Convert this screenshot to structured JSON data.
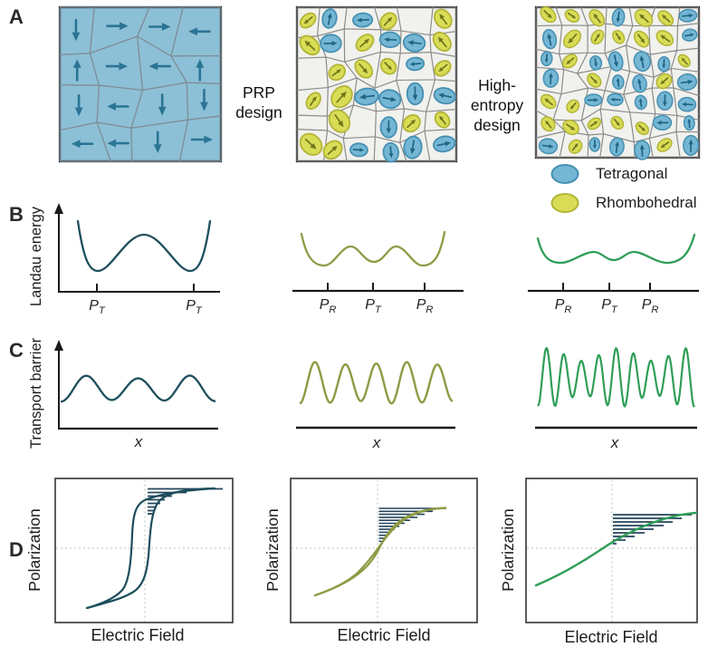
{
  "figure": {
    "panel_a": {
      "label": "A",
      "captions": {
        "prp": "PRP\ndesign",
        "high_entropy": "High-\nentropy\ndesign"
      },
      "legend": [
        {
          "label": "Tetragonal"
        },
        {
          "label": "Rhombohedral"
        }
      ]
    },
    "panel_b": {
      "label": "B",
      "ylabel": "Landau energy",
      "plots": [
        {
          "ticks": [
            {
              "base": "P",
              "sub": "T"
            },
            {
              "base": "P",
              "sub": "T"
            }
          ]
        },
        {
          "ticks": [
            {
              "base": "P",
              "sub": "R"
            },
            {
              "base": "P",
              "sub": "T"
            },
            {
              "base": "P",
              "sub": "R"
            }
          ]
        },
        {
          "ticks": [
            {
              "base": "P",
              "sub": "R"
            },
            {
              "base": "P",
              "sub": "T"
            },
            {
              "base": "P",
              "sub": "R"
            }
          ]
        }
      ]
    },
    "panel_c": {
      "label": "C",
      "ylabel": "Transport barrier",
      "xlabel": "x"
    },
    "panel_d": {
      "label": "D",
      "ylabel": "Polarization",
      "xlabel": "Electric Field"
    },
    "colors": {
      "teal_dark": "#1d4e5c",
      "olive": "#8f9a45",
      "green": "#2f9e57",
      "tetragonal_fill": "#74b6d4",
      "tetragonal_stroke": "#4590b2",
      "tetragonal_arrow": "#1f6586",
      "rhombohedral_fill": "#d9dc55",
      "rhombohedral_stroke": "#b2b535",
      "rhombohedral_arrow": "#70761c",
      "prp_bg": "#8cc0d6",
      "prp_line": "#7e8f99",
      "prp_arrow": "#2b7496",
      "grain_line": "#8c8c8c",
      "grain_bg": "#f1f1ee",
      "hatch": "#24455c",
      "axis": "#1a1a1a",
      "box_border": "#3f3f3f",
      "crosshair": "#c7cfc7"
    }
  }
}
